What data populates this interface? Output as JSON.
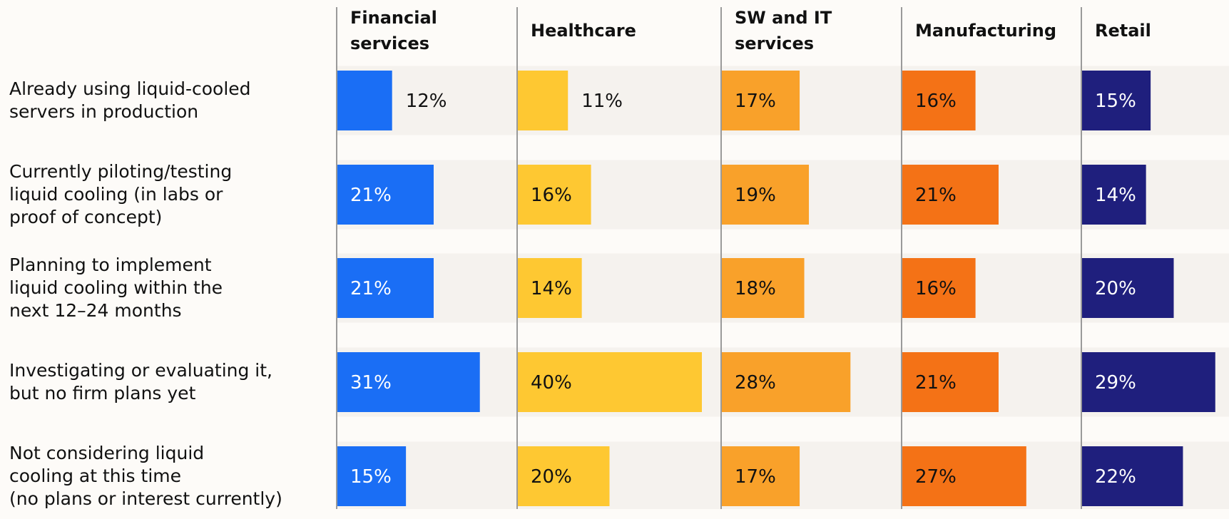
{
  "chart_data": {
    "type": "bar",
    "categories": [
      "Already using liquid-cooled\nservers in production",
      "Currently piloting/testing\nliquid cooling (in labs or\nproof of concept)",
      "Planning to implement\nliquid cooling within the\nnext 12–24 months",
      "Investigating or evaluating it,\nbut no firm plans yet",
      "Not considering liquid\ncooling at this time\n(no plans or interest currently)"
    ],
    "xlim": [
      0,
      40
    ],
    "series": [
      {
        "name": "Financial\nservices",
        "color": "#1a6ef5",
        "values": [
          12,
          21,
          21,
          31,
          15
        ],
        "value_labels": [
          "12%",
          "21%",
          "21%",
          "31%",
          "15%"
        ]
      },
      {
        "name": "Healthcare",
        "color": "#fec832",
        "values": [
          11,
          16,
          14,
          40,
          20
        ],
        "value_labels": [
          "11%",
          "16%",
          "14%",
          "40%",
          "20%"
        ]
      },
      {
        "name": "SW and IT\nservices",
        "color": "#f9a12a",
        "values": [
          17,
          19,
          18,
          28,
          17
        ],
        "value_labels": [
          "17%",
          "19%",
          "18%",
          "28%",
          "17%"
        ]
      },
      {
        "name": "Manufacturing",
        "color": "#f47216",
        "values": [
          16,
          21,
          16,
          21,
          27
        ],
        "value_labels": [
          "16%",
          "21%",
          "16%",
          "21%",
          "27%"
        ]
      },
      {
        "name": "Retail",
        "color": "#1f1f7d",
        "values": [
          15,
          14,
          20,
          29,
          22
        ],
        "value_labels": [
          "15%",
          "14%",
          "20%",
          "29%",
          "22%"
        ]
      }
    ]
  }
}
